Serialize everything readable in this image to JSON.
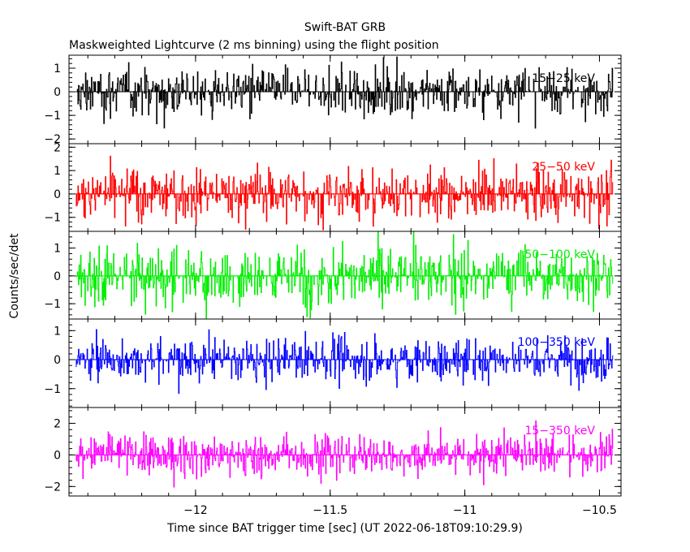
{
  "title": "Swift-BAT GRB",
  "subtitle": "Maskweighted Lightcurve (2 ms binning) using the flight position",
  "chart_data": {
    "type": "line",
    "title": "Swift-BAT GRB",
    "subtitle": "Maskweighted Lightcurve (2 ms binning) using the flight position",
    "xlabel": "Time since BAT trigger time [sec] (UT 2022-06-18T09:10:29.9)",
    "ylabel": "Counts/sec/det",
    "xlim": [
      -12.47,
      -10.42
    ],
    "xticks": [
      -12,
      -11.5,
      -11,
      -10.5
    ],
    "xtick_labels": [
      "−12",
      "−11.5",
      "−11",
      "−10.5"
    ],
    "x_start": -12.445,
    "x_end": -10.45,
    "bin_width": 0.002,
    "panels": [
      {
        "name": "15−25 keV",
        "color": "#000000",
        "ylim": [
          -2.2,
          1.55
        ],
        "yticks": [
          -2,
          -1,
          0,
          1
        ],
        "ytick_labels": [
          "−2",
          "−1",
          "0",
          "1"
        ],
        "amplitude": 0.75
      },
      {
        "name": "25−50 keV",
        "color": "#ff0000",
        "ylim": [
          -1.6,
          2.15
        ],
        "yticks": [
          -1,
          0,
          1,
          2
        ],
        "ytick_labels": [
          "−1",
          "0",
          "1",
          "2"
        ],
        "amplitude": 0.8
      },
      {
        "name": "50−100 keV",
        "color": "#00ee00",
        "ylim": [
          -1.55,
          1.6
        ],
        "yticks": [
          -1,
          0,
          1
        ],
        "ytick_labels": [
          "−1",
          "0",
          "1"
        ],
        "amplitude": 0.8
      },
      {
        "name": "100−350 keV",
        "color": "#0000ff",
        "ylim": [
          -1.65,
          1.4
        ],
        "yticks": [
          -1,
          0,
          1
        ],
        "ytick_labels": [
          "−1",
          "0",
          "1"
        ],
        "amplitude": 0.55
      },
      {
        "name": "15−350 keV",
        "color": "#ff00ff",
        "ylim": [
          -2.6,
          3.0
        ],
        "yticks": [
          -2,
          0,
          2
        ],
        "ytick_labels": [
          "−2",
          "0",
          "2"
        ],
        "amplitude": 0.95
      }
    ]
  }
}
